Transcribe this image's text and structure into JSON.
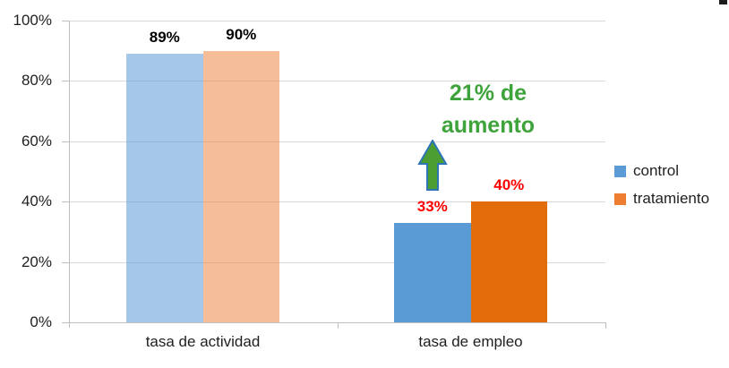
{
  "chart_data": {
    "type": "bar",
    "categories": [
      "tasa de actividad",
      "tasa de empleo"
    ],
    "series": [
      {
        "name": "control",
        "color": "#5B9BD5",
        "muted_color": "rgba(91,155,213,0.55)",
        "values": [
          89,
          33
        ]
      },
      {
        "name": "tratamiento",
        "color": "#E36C0A",
        "muted_color": "rgba(237,125,49,0.5)",
        "values": [
          90,
          40
        ]
      }
    ],
    "muted_category_index": 0,
    "value_labels": [
      [
        {
          "text": "89%",
          "color": "#000000"
        },
        {
          "text": "90%",
          "color": "#000000"
        }
      ],
      [
        {
          "text": "33%",
          "color": "#FF0000"
        },
        {
          "text": "40%",
          "color": "#FF0000"
        }
      ]
    ],
    "ylim": [
      0,
      100
    ],
    "yticks": [
      "0%",
      "20%",
      "40%",
      "60%",
      "80%",
      "100%"
    ],
    "grid": true,
    "legend": {
      "position": "right",
      "items": [
        {
          "label": "control",
          "color": "#5B9BD5"
        },
        {
          "label": "tratamiento",
          "color": "#ED7D31"
        }
      ]
    },
    "annotation": {
      "text_lines": [
        "21% de",
        "aumento"
      ],
      "color": "#3FA33C",
      "arrow": {
        "type": "up-block-arrow",
        "fill": "#4C9E33",
        "stroke": "#2E75B6"
      }
    }
  },
  "colors": {
    "gridline": "#D9D9D9",
    "axis": "#BFBFBF",
    "tick_text": "#1F1F1F"
  }
}
